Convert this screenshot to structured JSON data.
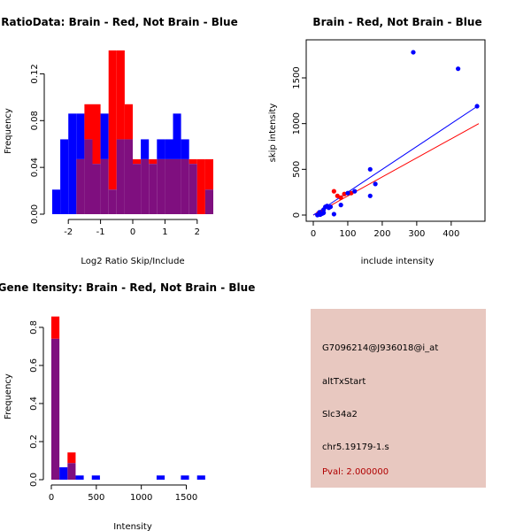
{
  "colors": {
    "red": "#ff0000",
    "blue": "#0000ff",
    "overlap": "#7f0f7f",
    "panel_bg": "#e8c8c0",
    "pval_text": "#b00000"
  },
  "chart_data": [
    {
      "type": "bar",
      "title": "RatioData: Brain - Red, Not Brain - Blue",
      "xlabel": "Log2 Ratio Skip/Include",
      "ylabel": "Frequency",
      "xlim": [
        -2.5,
        2.5
      ],
      "ylim": [
        0,
        0.14
      ],
      "xticks": [
        "-2",
        "-1",
        "0",
        "1",
        "2"
      ],
      "xtick_values": [
        -2,
        -1,
        0,
        1,
        2
      ],
      "yticks": [
        "0.00",
        "0.04",
        "0.08",
        "0.12"
      ],
      "ytick_values": [
        0,
        0.04,
        0.08,
        0.12
      ],
      "bin_start": -2.5,
      "bin_width": 0.25,
      "series": [
        {
          "name": "Brain (red)",
          "values": [
            0,
            0,
            0,
            0.047,
            0.094,
            0.094,
            0.047,
            0.14,
            0.14,
            0.094,
            0.047,
            0.047,
            0.047,
            0.047,
            0.047,
            0.047,
            0.047,
            0.047,
            0.047,
            0.047
          ]
        },
        {
          "name": "Not Brain (blue)",
          "values": [
            0.021,
            0.064,
            0.086,
            0.086,
            0.064,
            0.043,
            0.086,
            0.021,
            0.064,
            0.064,
            0.043,
            0.064,
            0.043,
            0.064,
            0.064,
            0.086,
            0.064,
            0.043,
            0.0,
            0.021
          ]
        }
      ]
    },
    {
      "type": "scatter",
      "title": "Brain - Red, Not Brain - Blue",
      "xlabel": "include intensity",
      "ylabel": "skip intensity",
      "xlim": [
        0,
        480
      ],
      "ylim": [
        0,
        1800
      ],
      "xticks": [
        "0",
        "100",
        "200",
        "300",
        "400"
      ],
      "xtick_values": [
        0,
        100,
        200,
        300,
        400
      ],
      "yticks": [
        "0",
        "500",
        "1000",
        "1500"
      ],
      "ytick_values": [
        0,
        500,
        1000,
        1500
      ],
      "series": [
        {
          "name": "Brain (red)",
          "points": [
            [
              15,
              20
            ],
            [
              25,
              30
            ],
            [
              60,
              260
            ],
            [
              70,
              210
            ],
            [
              80,
              190
            ],
            [
              90,
              230
            ],
            [
              110,
              240
            ]
          ],
          "fit": [
            [
              0,
              0
            ],
            [
              480,
              1000
            ]
          ]
        },
        {
          "name": "Not Brain (blue)",
          "points": [
            [
              290,
              1780
            ],
            [
              420,
              1600
            ],
            [
              475,
              1190
            ],
            [
              165,
              500
            ],
            [
              180,
              340
            ],
            [
              165,
              210
            ],
            [
              100,
              240
            ],
            [
              120,
              260
            ],
            [
              80,
              110
            ],
            [
              60,
              10
            ],
            [
              35,
              90
            ],
            [
              40,
              100
            ],
            [
              30,
              60
            ],
            [
              28,
              20
            ],
            [
              22,
              10
            ],
            [
              18,
              30
            ],
            [
              45,
              80
            ],
            [
              50,
              90
            ],
            [
              12,
              0
            ],
            [
              20,
              5
            ],
            [
              25,
              15
            ],
            [
              30,
              25
            ]
          ],
          "fit": [
            [
              0,
              0
            ],
            [
              480,
              1200
            ]
          ]
        }
      ]
    },
    {
      "type": "bar",
      "title": "Gene Itensity: Brain - Red, Not Brain - Blue",
      "xlabel": "Intensity",
      "ylabel": "Frequency",
      "xlim": [
        0,
        1800
      ],
      "ylim": [
        0,
        0.86
      ],
      "xticks": [
        "0",
        "500",
        "1000",
        "1500"
      ],
      "xtick_values": [
        0,
        500,
        1000,
        1500
      ],
      "yticks": [
        "0.0",
        "0.2",
        "0.4",
        "0.6",
        "0.8"
      ],
      "ytick_values": [
        0,
        0.2,
        0.4,
        0.6,
        0.8
      ],
      "bin_start": 0,
      "bin_width": 90,
      "series": [
        {
          "name": "Brain (red)",
          "values": [
            0.857,
            0,
            0.143,
            0,
            0,
            0,
            0,
            0,
            0,
            0,
            0,
            0,
            0,
            0,
            0,
            0,
            0,
            0,
            0,
            0
          ]
        },
        {
          "name": "Not Brain (blue)",
          "values": [
            0.74,
            0.065,
            0.087,
            0.022,
            0,
            0.022,
            0,
            0,
            0,
            0,
            0,
            0,
            0,
            0.022,
            0,
            0,
            0.022,
            0,
            0.022,
            0
          ]
        }
      ]
    }
  ],
  "info_panel": {
    "probe": "G7096214@J936018@i_at",
    "event": "altTxStart",
    "gene": "Slc34a2",
    "location": "chr5.19179-1.s",
    "pval": "Pval: 2.000000"
  }
}
